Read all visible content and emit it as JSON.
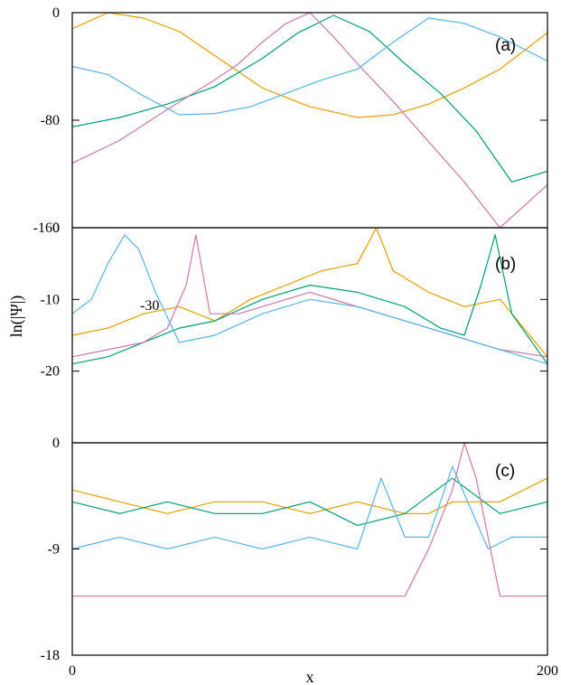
{
  "chart_data": [
    {
      "type": "line",
      "panel_label": "(a)",
      "ylim": [
        -160,
        0
      ],
      "yticks": [
        "0",
        "-80",
        "-160"
      ],
      "ytick_values": [
        0,
        -80,
        -160
      ],
      "xlim": [
        0,
        200
      ],
      "series": [
        {
          "color": "#e69f00",
          "x": [
            0,
            15,
            30,
            45,
            60,
            80,
            100,
            120,
            135,
            150,
            165,
            180,
            200
          ],
          "y": [
            -12,
            0,
            -4,
            -14,
            -32,
            -56,
            -70,
            -78,
            -76,
            -68,
            -56,
            -42,
            -15
          ]
        },
        {
          "color": "#009e73",
          "x": [
            0,
            20,
            40,
            60,
            80,
            95,
            110,
            125,
            140,
            155,
            170,
            185,
            200
          ],
          "y": [
            -85,
            -78,
            -68,
            -55,
            -34,
            -15,
            -2,
            -14,
            -38,
            -60,
            -88,
            -126,
            -118
          ]
        },
        {
          "color": "#cc79a7",
          "x": [
            0,
            20,
            40,
            60,
            70,
            80,
            90,
            100,
            110,
            120,
            135,
            150,
            165,
            180,
            200
          ],
          "y": [
            -112,
            -95,
            -72,
            -50,
            -38,
            -22,
            -8,
            0,
            -18,
            -38,
            -66,
            -96,
            -126,
            -160,
            -128
          ]
        },
        {
          "color": "#56b4e9",
          "x": [
            0,
            15,
            30,
            45,
            60,
            75,
            90,
            105,
            120,
            135,
            150,
            165,
            180,
            200
          ],
          "y": [
            -40,
            -46,
            -62,
            -76,
            -75,
            -70,
            -60,
            -50,
            -42,
            -22,
            -4,
            -8,
            -18,
            -36
          ]
        }
      ]
    },
    {
      "type": "line",
      "panel_label": "(b)",
      "ylim": [
        -30,
        0
      ],
      "yticks": [
        "0",
        "-10",
        "-20"
      ],
      "ytick_values": [
        0,
        -10,
        -20
      ],
      "stray_label": "-30",
      "xlim": [
        0,
        200
      ],
      "series": [
        {
          "color": "#e69f00",
          "x": [
            0,
            15,
            30,
            45,
            60,
            75,
            90,
            105,
            120,
            128,
            135,
            150,
            165,
            180,
            200
          ],
          "y": [
            -15,
            -14,
            -12,
            -11,
            -13,
            -10,
            -8,
            -6,
            -5,
            0,
            -6,
            -9,
            -11,
            -10,
            -18
          ]
        },
        {
          "color": "#009e73",
          "x": [
            0,
            15,
            30,
            45,
            60,
            80,
            100,
            120,
            140,
            155,
            165,
            172,
            178,
            185,
            200
          ],
          "y": [
            -19,
            -18,
            -16,
            -14,
            -13,
            -10,
            -8,
            -9,
            -11,
            -14,
            -15,
            -8,
            -1,
            -12,
            -19
          ]
        },
        {
          "color": "#cc79a7",
          "x": [
            0,
            15,
            30,
            40,
            48,
            52,
            58,
            70,
            90,
            100,
            120,
            140,
            160,
            180,
            200
          ],
          "y": [
            -18,
            -17,
            -16,
            -14,
            -8,
            -1,
            -12,
            -12,
            -10,
            -9,
            -11,
            -13,
            -15,
            -17,
            -18
          ]
        },
        {
          "color": "#56b4e9",
          "x": [
            0,
            8,
            15,
            22,
            28,
            35,
            45,
            60,
            80,
            100,
            120,
            140,
            160,
            180,
            200
          ],
          "y": [
            -12,
            -10,
            -5,
            -1,
            -3,
            -9,
            -16,
            -15,
            -12,
            -10,
            -11,
            -13,
            -15,
            -17,
            -19
          ]
        }
      ]
    },
    {
      "type": "line",
      "panel_label": "(c)",
      "ylim": [
        -18,
        0
      ],
      "yticks": [
        "0",
        "-9",
        "-18"
      ],
      "ytick_values": [
        0,
        -9,
        -18
      ],
      "xlim": [
        0,
        200
      ],
      "xticks": [
        "0",
        "200"
      ],
      "xtick_values": [
        0,
        200
      ],
      "xlabel": "x",
      "series": [
        {
          "color": "#e69f00",
          "x": [
            0,
            20,
            40,
            60,
            80,
            100,
            120,
            140,
            150,
            160,
            180,
            200
          ],
          "y": [
            -4,
            -5,
            -6,
            -5,
            -5,
            -6,
            -5,
            -6,
            -6,
            -5,
            -5,
            -3
          ]
        },
        {
          "color": "#009e73",
          "x": [
            0,
            20,
            40,
            60,
            80,
            100,
            120,
            140,
            160,
            180,
            200
          ],
          "y": [
            -5,
            -6,
            -5,
            -6,
            -6,
            -5,
            -7,
            -6,
            -3,
            -6,
            -5
          ]
        },
        {
          "color": "#56b4e9",
          "x": [
            0,
            20,
            40,
            60,
            80,
            100,
            120,
            130,
            140,
            150,
            160,
            175,
            185,
            200
          ],
          "y": [
            -9,
            -8,
            -9,
            -8,
            -9,
            -8,
            -9,
            -3,
            -8,
            -8,
            -2,
            -9,
            -8,
            -8
          ]
        },
        {
          "color": "#cc79a7",
          "x": [
            0,
            20,
            40,
            60,
            80,
            100,
            120,
            140,
            150,
            160,
            165,
            170,
            180,
            190,
            200
          ],
          "y": [
            -13,
            -13,
            -13,
            -13,
            -13,
            -13,
            -13,
            -13,
            -9,
            -4,
            0,
            -3,
            -13,
            -13,
            -13
          ]
        }
      ]
    }
  ],
  "ylabel": "ln(|Ψ|)"
}
